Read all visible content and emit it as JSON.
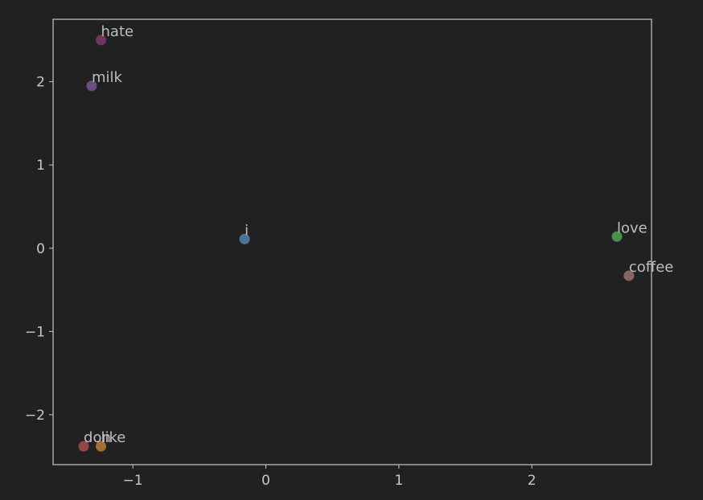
{
  "chart_data": {
    "type": "scatter",
    "title": "",
    "xlabel": "",
    "ylabel": "",
    "xlim": [
      -1.6,
      2.9
    ],
    "ylim": [
      -2.6,
      2.75
    ],
    "xticks": [
      -1,
      0,
      1,
      2
    ],
    "xtick_labels": [
      "−1",
      "0",
      "1",
      "2"
    ],
    "yticks": [
      -2,
      -1,
      0,
      1,
      2
    ],
    "ytick_labels": [
      "−2",
      "−1",
      "0",
      "1",
      "2"
    ],
    "grid": false,
    "background": "#212121",
    "axis_color": "#c8c8c8",
    "text_color": "#bdbdbd",
    "points": [
      {
        "label": "i",
        "x": -0.16,
        "y": 0.11,
        "color": "#5b8ab0"
      },
      {
        "label": "don",
        "x": -1.37,
        "y": -2.38,
        "color": "#b05050"
      },
      {
        "label": "like",
        "x": -1.24,
        "y": -2.38,
        "color": "#c8813a"
      },
      {
        "label": "love",
        "x": 2.64,
        "y": 0.14,
        "color": "#5aa95a"
      },
      {
        "label": "hate",
        "x": -1.24,
        "y": 2.5,
        "color": "#8a3a6e"
      },
      {
        "label": "milk",
        "x": -1.31,
        "y": 1.95,
        "color": "#7d5a9b"
      },
      {
        "label": "coffee",
        "x": 2.73,
        "y": -0.33,
        "color": "#a07870"
      }
    ]
  }
}
